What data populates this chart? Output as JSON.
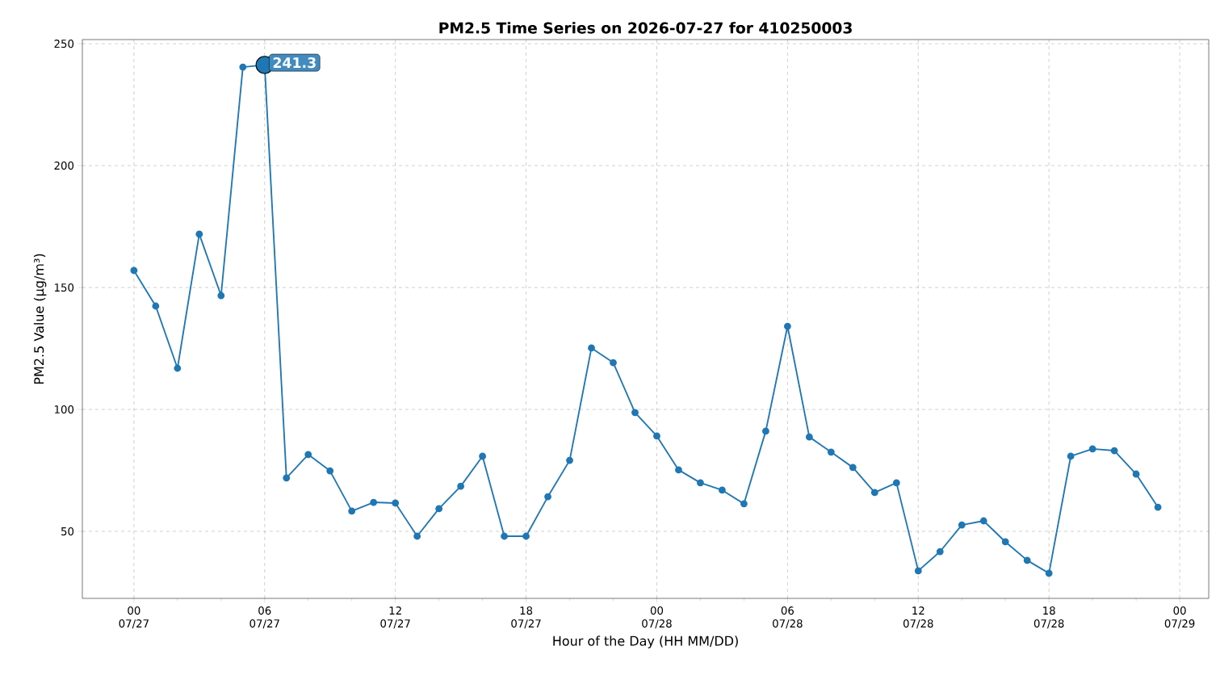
{
  "chart_data": {
    "type": "line",
    "title": "PM2.5 Time Series on 2026-07-27 for 410250003",
    "xlabel": "Hour of the Day (HH MM/DD)",
    "ylabel": "PM2.5 Value (µg/m³)",
    "x": [
      "2026-07-27T00:00",
      "2026-07-27T01:00",
      "2026-07-27T02:00",
      "2026-07-27T03:00",
      "2026-07-27T04:00",
      "2026-07-27T05:00",
      "2026-07-27T06:00",
      "2026-07-27T07:00",
      "2026-07-27T08:00",
      "2026-07-27T09:00",
      "2026-07-27T10:00",
      "2026-07-27T11:00",
      "2026-07-27T12:00",
      "2026-07-27T13:00",
      "2026-07-27T14:00",
      "2026-07-27T15:00",
      "2026-07-27T16:00",
      "2026-07-27T17:00",
      "2026-07-27T18:00",
      "2026-07-27T19:00",
      "2026-07-27T20:00",
      "2026-07-27T21:00",
      "2026-07-27T22:00",
      "2026-07-27T23:00",
      "2026-07-28T00:00",
      "2026-07-28T01:00",
      "2026-07-28T02:00",
      "2026-07-28T03:00",
      "2026-07-28T04:00",
      "2026-07-28T05:00",
      "2026-07-28T06:00",
      "2026-07-28T07:00",
      "2026-07-28T08:00",
      "2026-07-28T09:00",
      "2026-07-28T10:00",
      "2026-07-28T11:00",
      "2026-07-28T12:00",
      "2026-07-28T13:00",
      "2026-07-28T14:00",
      "2026-07-28T15:00",
      "2026-07-28T16:00",
      "2026-07-28T17:00",
      "2026-07-28T18:00",
      "2026-07-28T19:00",
      "2026-07-28T20:00",
      "2026-07-28T21:00",
      "2026-07-28T22:00",
      "2026-07-28T23:00"
    ],
    "series": [
      {
        "color": "#1f77b4",
        "values": [
          157,
          142.4,
          116.9,
          171.9,
          146.7,
          240.4,
          241.3,
          71.9,
          81.5,
          74.8,
          58.3,
          61.9,
          61.6,
          48,
          59.3,
          68.5,
          80.8,
          48,
          48,
          64.2,
          79.1,
          125.2,
          119.2,
          98.7,
          89.1,
          75.2,
          69.9,
          66.9,
          61.3,
          91.1,
          134.1,
          88.7,
          82.5,
          76.2,
          65.9,
          69.9,
          33.8,
          41.7,
          52.6,
          54.3,
          45.7,
          38.1,
          32.8,
          80.8,
          83.8,
          83.1,
          73.5,
          59.9
        ]
      }
    ],
    "xlim": [
      "2026-07-26T21:38",
      "2026-07-29T01:20"
    ],
    "xticks": [
      {
        "value": "2026-07-27T00:00",
        "label": "00 07/27"
      },
      {
        "value": "2026-07-27T02:00",
        "label": null
      },
      {
        "value": "2026-07-27T04:00",
        "label": null
      },
      {
        "value": "2026-07-27T06:00",
        "label": "06 07/27"
      },
      {
        "value": "2026-07-27T08:00",
        "label": null
      },
      {
        "value": "2026-07-27T10:00",
        "label": null
      },
      {
        "value": "2026-07-27T12:00",
        "label": "12 07/27"
      },
      {
        "value": "2026-07-27T14:00",
        "label": null
      },
      {
        "value": "2026-07-27T16:00",
        "label": null
      },
      {
        "value": "2026-07-27T18:00",
        "label": "18 07/27"
      },
      {
        "value": "2026-07-27T20:00",
        "label": null
      },
      {
        "value": "2026-07-27T22:00",
        "label": null
      },
      {
        "value": "2026-07-28T00:00",
        "label": "00 07/28"
      },
      {
        "value": "2026-07-28T02:00",
        "label": null
      },
      {
        "value": "2026-07-28T04:00",
        "label": null
      },
      {
        "value": "2026-07-28T06:00",
        "label": "06 07/28"
      },
      {
        "value": "2026-07-28T08:00",
        "label": null
      },
      {
        "value": "2026-07-28T10:00",
        "label": null
      },
      {
        "value": "2026-07-28T12:00",
        "label": "12 07/28"
      },
      {
        "value": "2026-07-28T14:00",
        "label": null
      },
      {
        "value": "2026-07-28T16:00",
        "label": null
      },
      {
        "value": "2026-07-28T18:00",
        "label": "18 07/28"
      },
      {
        "value": "2026-07-28T20:00",
        "label": null
      },
      {
        "value": "2026-07-28T22:00",
        "label": null
      },
      {
        "value": "2026-07-29T00:00",
        "label": "00 07/29"
      }
    ],
    "ylim": [
      22.5,
      251.7
    ],
    "yticks": [
      50,
      100,
      150,
      200,
      250
    ],
    "grid": true,
    "marker": "circle",
    "line_style": "solid",
    "annotations": [
      {
        "text": "241.3",
        "x": "2026-07-27T06:00",
        "y": 241.3
      }
    ]
  }
}
